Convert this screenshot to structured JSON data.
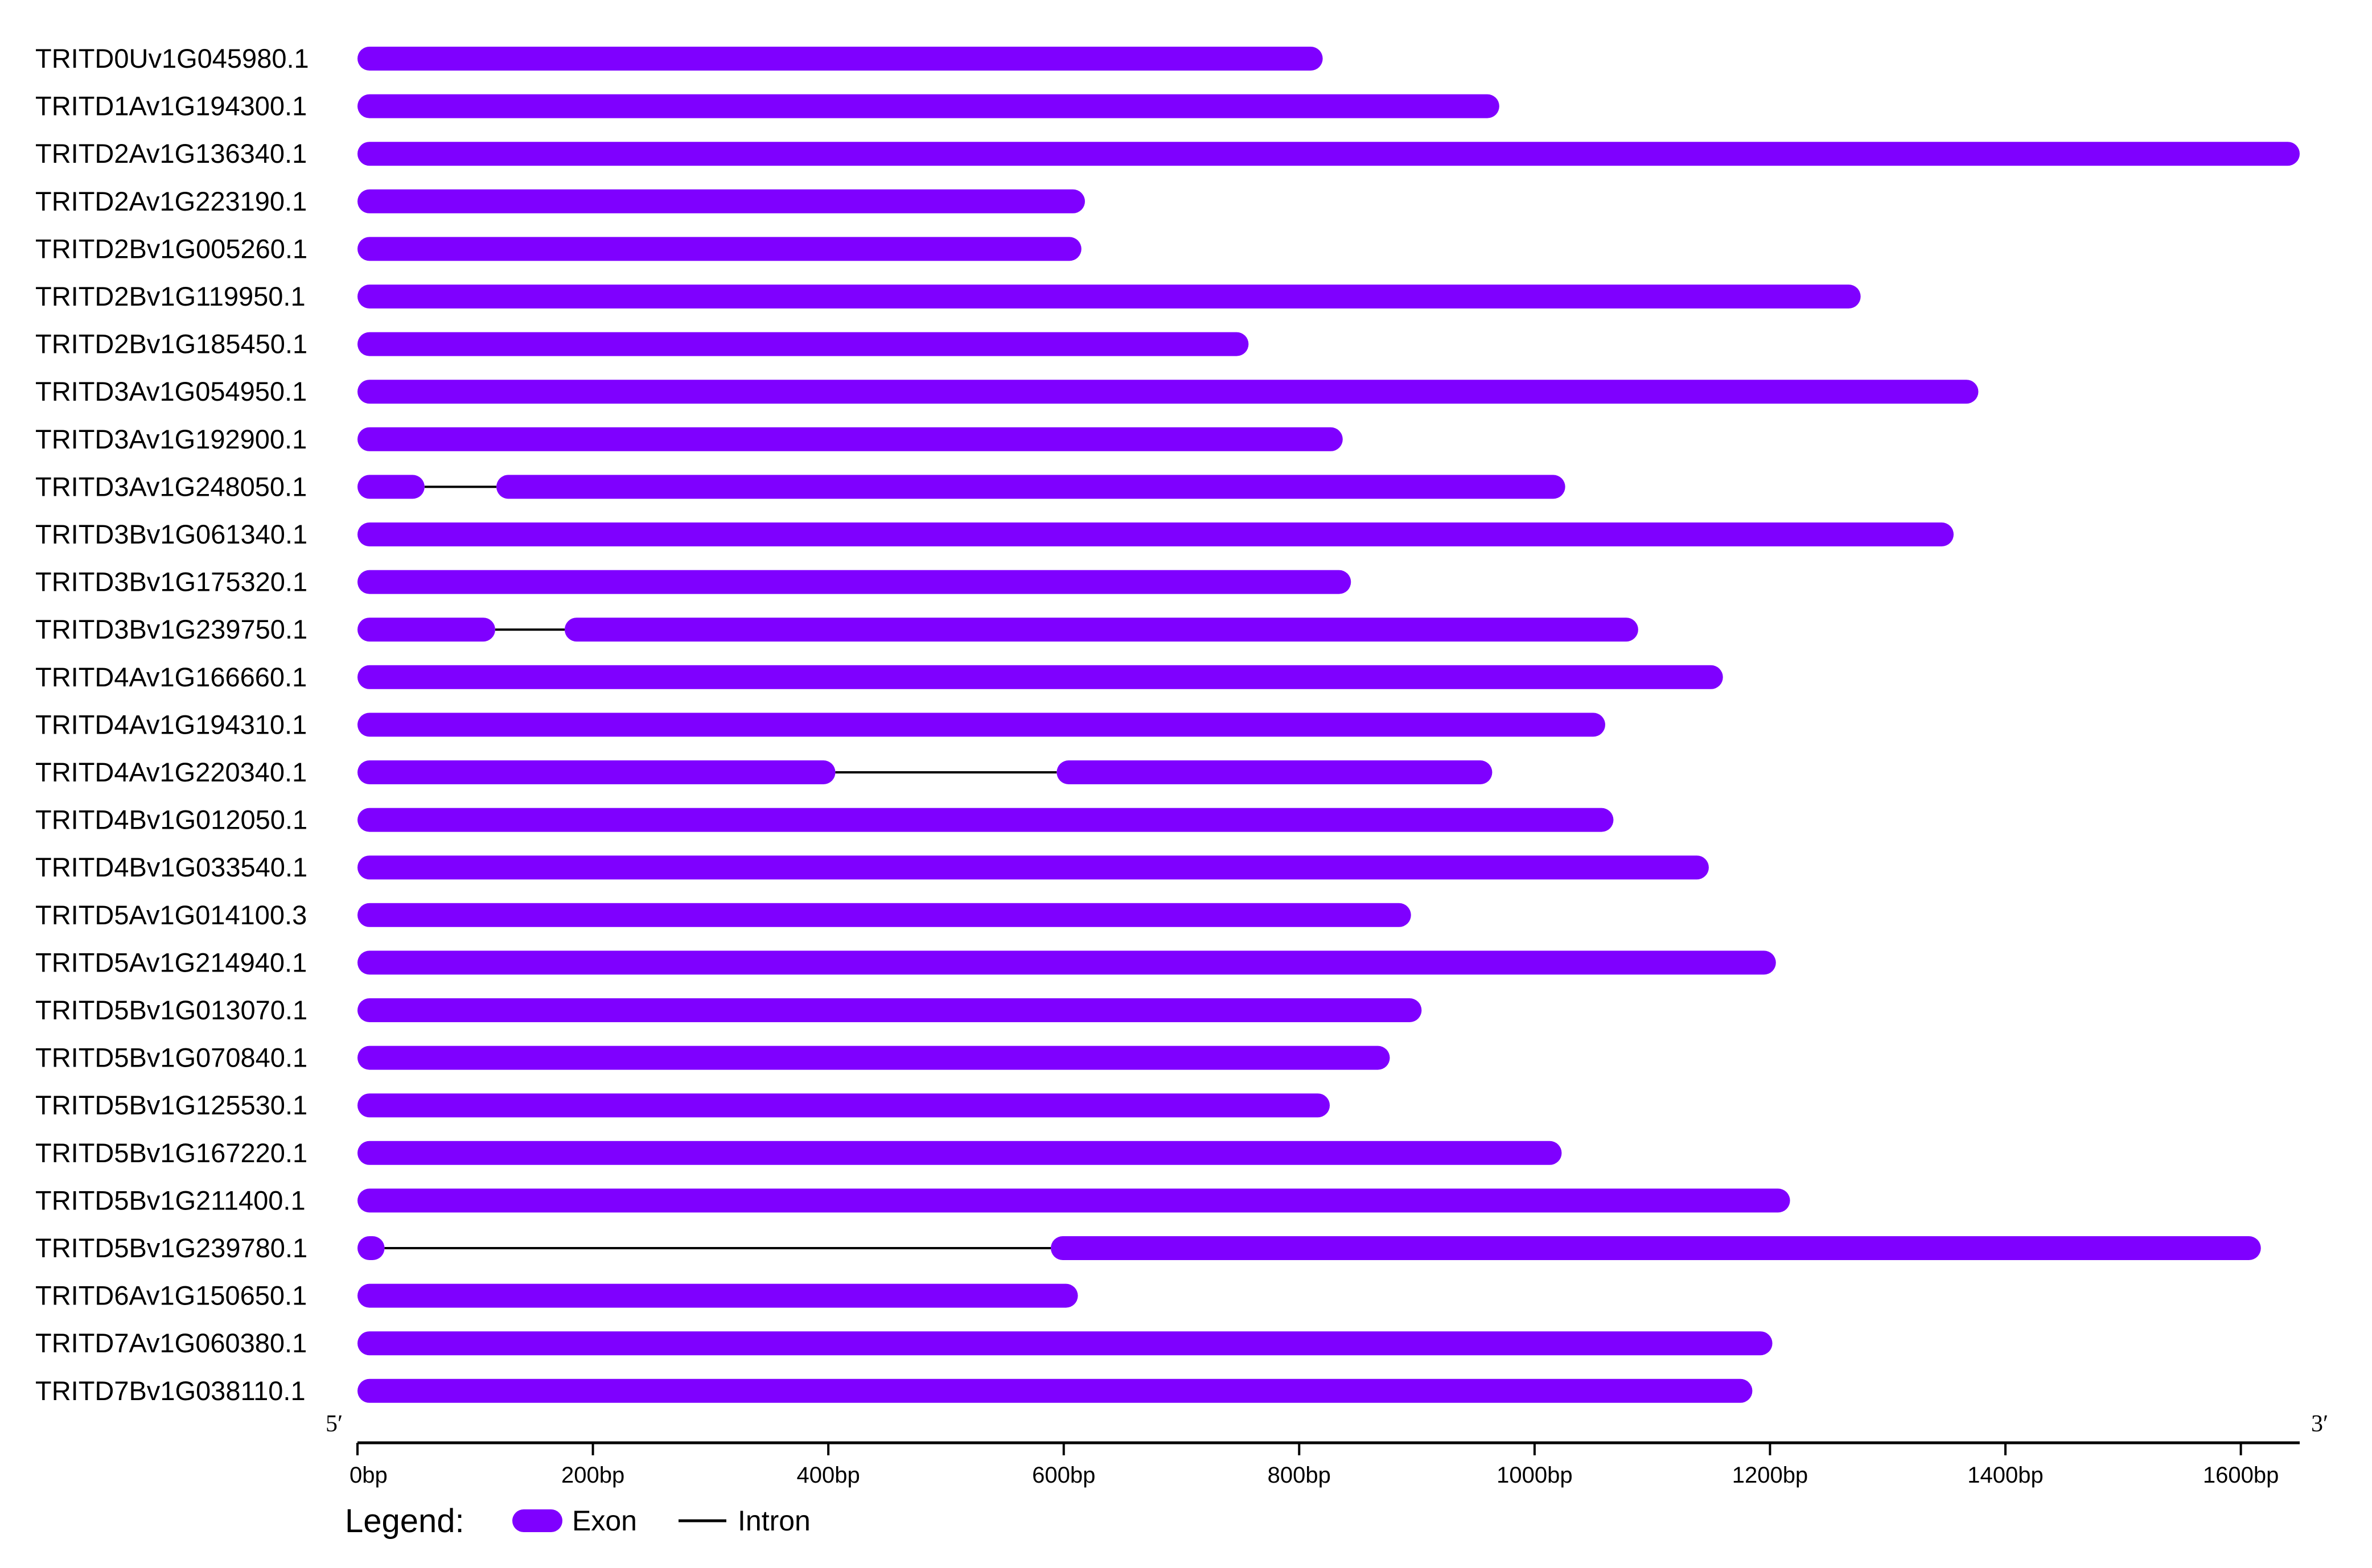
{
  "colors": {
    "exon": "#7f00ff",
    "intron": "#000000",
    "axis": "#000000"
  },
  "axis": {
    "start_label": "5′",
    "end_label": "3′",
    "min": 0,
    "max": 1650,
    "ticks": [
      {
        "value": 0,
        "label": "0bp"
      },
      {
        "value": 200,
        "label": "200bp"
      },
      {
        "value": 400,
        "label": "400bp"
      },
      {
        "value": 600,
        "label": "600bp"
      },
      {
        "value": 800,
        "label": "800bp"
      },
      {
        "value": 1000,
        "label": "1000bp"
      },
      {
        "value": 1200,
        "label": "1200bp"
      },
      {
        "value": 1400,
        "label": "1400bp"
      },
      {
        "value": 1600,
        "label": "1600bp"
      }
    ]
  },
  "legend": {
    "title": "Legend:",
    "exon_label": "Exon",
    "intron_label": "Intron"
  },
  "genes": [
    {
      "name": "TRITD0Uv1G045980.1",
      "exons": [
        [
          0,
          820
        ]
      ]
    },
    {
      "name": "TRITD1Av1G194300.1",
      "exons": [
        [
          0,
          970
        ]
      ]
    },
    {
      "name": "TRITD2Av1G136340.1",
      "exons": [
        [
          0,
          1650
        ]
      ]
    },
    {
      "name": "TRITD2Av1G223190.1",
      "exons": [
        [
          0,
          618
        ]
      ]
    },
    {
      "name": "TRITD2Bv1G005260.1",
      "exons": [
        [
          0,
          615
        ]
      ]
    },
    {
      "name": "TRITD2Bv1G119950.1",
      "exons": [
        [
          0,
          1277
        ]
      ]
    },
    {
      "name": "TRITD2Bv1G185450.1",
      "exons": [
        [
          0,
          757
        ]
      ]
    },
    {
      "name": "TRITD3Av1G054950.1",
      "exons": [
        [
          0,
          1377
        ]
      ]
    },
    {
      "name": "TRITD3Av1G192900.1",
      "exons": [
        [
          0,
          837
        ]
      ]
    },
    {
      "name": "TRITD3Av1G248050.1",
      "exons": [
        [
          0,
          57
        ],
        [
          118,
          1026
        ]
      ]
    },
    {
      "name": "TRITD3Bv1G061340.1",
      "exons": [
        [
          0,
          1356
        ]
      ]
    },
    {
      "name": "TRITD3Bv1G175320.1",
      "exons": [
        [
          0,
          844
        ]
      ]
    },
    {
      "name": "TRITD3Bv1G239750.1",
      "exons": [
        [
          0,
          117
        ],
        [
          176,
          1088
        ]
      ]
    },
    {
      "name": "TRITD4Av1G166660.1",
      "exons": [
        [
          0,
          1160
        ]
      ]
    },
    {
      "name": "TRITD4Av1G194310.1",
      "exons": [
        [
          0,
          1060
        ]
      ]
    },
    {
      "name": "TRITD4Av1G220340.1",
      "exons": [
        [
          0,
          406
        ],
        [
          594,
          964
        ]
      ]
    },
    {
      "name": "TRITD4Bv1G012050.1",
      "exons": [
        [
          0,
          1067
        ]
      ]
    },
    {
      "name": "TRITD4Bv1G033540.1",
      "exons": [
        [
          0,
          1148
        ]
      ]
    },
    {
      "name": "TRITD5Av1G014100.3",
      "exons": [
        [
          0,
          895
        ]
      ]
    },
    {
      "name": "TRITD5Av1G214940.1",
      "exons": [
        [
          0,
          1205
        ]
      ]
    },
    {
      "name": "TRITD5Bv1G013070.1",
      "exons": [
        [
          0,
          904
        ]
      ]
    },
    {
      "name": "TRITD5Bv1G070840.1",
      "exons": [
        [
          0,
          877
        ]
      ]
    },
    {
      "name": "TRITD5Bv1G125530.1",
      "exons": [
        [
          0,
          826
        ]
      ]
    },
    {
      "name": "TRITD5Bv1G167220.1",
      "exons": [
        [
          0,
          1023
        ]
      ]
    },
    {
      "name": "TRITD5Bv1G211400.1",
      "exons": [
        [
          0,
          1217
        ]
      ]
    },
    {
      "name": "TRITD5Bv1G239780.1",
      "exons": [
        [
          0,
          23
        ],
        [
          589,
          1617
        ]
      ]
    },
    {
      "name": "TRITD6Av1G150650.1",
      "exons": [
        [
          0,
          612
        ]
      ]
    },
    {
      "name": "TRITD7Av1G060380.1",
      "exons": [
        [
          0,
          1202
        ]
      ]
    },
    {
      "name": "TRITD7Bv1G038110.1",
      "exons": [
        [
          0,
          1185
        ]
      ]
    }
  ]
}
